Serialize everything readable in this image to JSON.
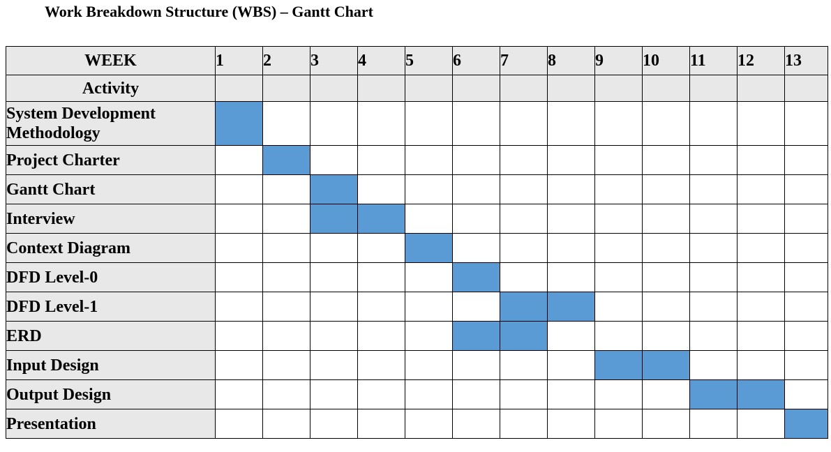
{
  "page_title": "Work Breakdown Structure (WBS) – Gantt Chart",
  "chart_data": {
    "type": "table",
    "header_label": "WEEK",
    "sub_header_label": "Activity",
    "weeks": [
      "1",
      "2",
      "3",
      "4",
      "5",
      "6",
      "7",
      "8",
      "9",
      "10",
      "11",
      "12",
      "13"
    ],
    "activities": [
      {
        "name": "System Development Methodology",
        "weeks": [
          1
        ]
      },
      {
        "name": "Project Charter",
        "weeks": [
          2
        ]
      },
      {
        "name": "Gantt Chart",
        "weeks": [
          3
        ]
      },
      {
        "name": "Interview",
        "weeks": [
          3,
          4
        ]
      },
      {
        "name": "Context Diagram",
        "weeks": [
          5
        ]
      },
      {
        "name": "DFD Level-0",
        "weeks": [
          6
        ]
      },
      {
        "name": "DFD Level-1",
        "weeks": [
          7,
          8
        ]
      },
      {
        "name": "ERD",
        "weeks": [
          6,
          7
        ]
      },
      {
        "name": "Input Design",
        "weeks": [
          9,
          10
        ]
      },
      {
        "name": "Output Design",
        "weeks": [
          11,
          12
        ]
      },
      {
        "name": "Presentation",
        "weeks": [
          13
        ]
      }
    ],
    "colors": {
      "bar": "#5b9bd5",
      "header_fill": "#e8e8e8",
      "grid": "#000000"
    }
  }
}
